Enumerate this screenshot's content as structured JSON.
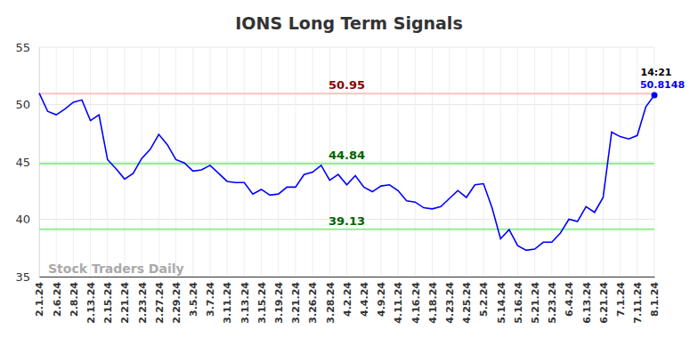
{
  "chart_data": {
    "type": "line",
    "title": "IONS Long Term Signals",
    "watermark": "Stock Traders Daily",
    "categories": [
      "2.1.24",
      null,
      "2.6.24",
      null,
      "2.8.24",
      null,
      "2.13.24",
      null,
      "2.15.24",
      null,
      "2.21.24",
      null,
      "2.23.24",
      null,
      "2.27.24",
      null,
      "2.29.24",
      null,
      "3.5.24",
      null,
      "3.7.24",
      null,
      "3.11.24",
      null,
      "3.13.24",
      null,
      "3.15.24",
      null,
      "3.19.24",
      null,
      "3.21.24",
      null,
      "3.26.24",
      null,
      "3.28.24",
      null,
      "4.2.24",
      null,
      "4.4.24",
      null,
      "4.9.24",
      null,
      "4.11.24",
      null,
      "4.16.24",
      null,
      "4.18.24",
      null,
      "4.23.24",
      null,
      "4.25.24",
      null,
      "5.2.24",
      null,
      "5.14.24",
      null,
      "5.16.24",
      null,
      "5.21.24",
      null,
      "5.23.24",
      null,
      "6.4.24",
      null,
      "6.13.24",
      null,
      "6.21.24",
      null,
      "7.1.24",
      null,
      "7.11.24",
      null,
      "8.1.24"
    ],
    "values": [
      51.0,
      49.4,
      49.1,
      49.6,
      50.2,
      50.4,
      48.6,
      49.1,
      45.2,
      44.4,
      43.5,
      44.0,
      45.3,
      46.1,
      47.4,
      46.5,
      45.2,
      44.9,
      44.2,
      44.3,
      44.7,
      44.0,
      43.3,
      43.2,
      43.2,
      42.2,
      42.6,
      42.1,
      42.2,
      42.8,
      42.8,
      43.9,
      44.1,
      44.7,
      43.4,
      43.9,
      43.0,
      43.8,
      42.8,
      42.4,
      42.9,
      43.0,
      42.5,
      41.6,
      41.5,
      41.0,
      40.9,
      41.1,
      41.8,
      42.5,
      41.9,
      43.0,
      43.1,
      41.0,
      38.3,
      39.1,
      37.7,
      37.3,
      37.4,
      38.0,
      38.0,
      38.8,
      40.0,
      39.8,
      41.1,
      40.6,
      41.9,
      47.6,
      47.2,
      47.0,
      47.3,
      49.8,
      50.8148
    ],
    "color": "#0000ff",
    "ylim": [
      35,
      55
    ],
    "yticks": [
      35,
      40,
      45,
      50,
      55
    ],
    "grid": true,
    "reference_lines": [
      {
        "value": 50.95,
        "color": "#ffc0c0",
        "label_color": "#8b0000"
      },
      {
        "value": 44.84,
        "color": "#90ee90",
        "label_color": "#006400"
      },
      {
        "value": 39.13,
        "color": "#90ee90",
        "label_color": "#006400"
      }
    ],
    "last_point_time": "14:21"
  }
}
